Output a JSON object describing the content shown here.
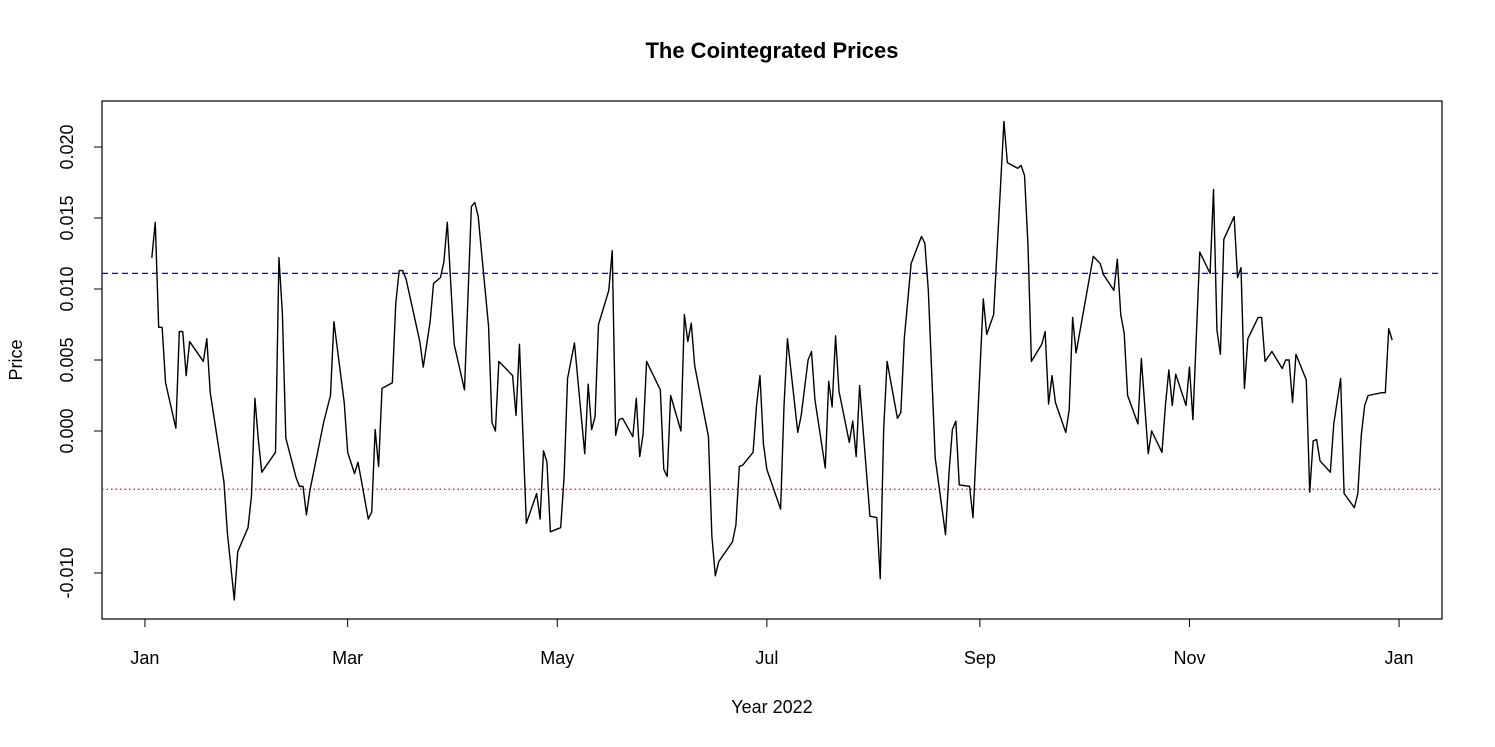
{
  "chart_data": {
    "type": "line",
    "title": "The Cointegrated Prices",
    "xlabel": "Year 2022",
    "ylabel": "Price",
    "xlim": [
      -11.5,
      378.5
    ],
    "ylim": [
      -0.01324,
      0.02324
    ],
    "xticks": [
      {
        "value": 1,
        "label": "Jan"
      },
      {
        "value": 60,
        "label": "Mar"
      },
      {
        "value": 121,
        "label": "May"
      },
      {
        "value": 182,
        "label": "Jul"
      },
      {
        "value": 244,
        "label": "Sep"
      },
      {
        "value": 305,
        "label": "Nov"
      },
      {
        "value": 366,
        "label": "Jan"
      }
    ],
    "yticks": [
      {
        "value": -0.01,
        "label": "-0.010"
      },
      {
        "value": 0,
        "label": "0.000"
      },
      {
        "value": 0.005,
        "label": "0.005"
      },
      {
        "value": 0.01,
        "label": "0.010"
      },
      {
        "value": 0.015,
        "label": "0.015"
      },
      {
        "value": 0.02,
        "label": "0.020"
      }
    ],
    "hlines": [
      {
        "value": 0.0111,
        "color": "blue",
        "style": "dashed"
      },
      {
        "value": -0.0041,
        "color": "red",
        "style": "dotted"
      }
    ],
    "series": [
      {
        "color": "#000000",
        "x": [
          3,
          4,
          5,
          6,
          7,
          10,
          11,
          12,
          13,
          14,
          18,
          19,
          20,
          24,
          25,
          27,
          28,
          31,
          32,
          33,
          34,
          35,
          39,
          40,
          41,
          42,
          45,
          46,
          47,
          48,
          49,
          53,
          55,
          56,
          59,
          60,
          62,
          63,
          64,
          66,
          67,
          68,
          69,
          70,
          73,
          74,
          75,
          76,
          77,
          81,
          82,
          84,
          85,
          87,
          88,
          89,
          91,
          94,
          96,
          97,
          98,
          99,
          101,
          102,
          103,
          104,
          108,
          109,
          110,
          112,
          115,
          116,
          117,
          118,
          119,
          122,
          123,
          124,
          126,
          129,
          130,
          131,
          132,
          133,
          136,
          137,
          138,
          139,
          140,
          143,
          144,
          145,
          146,
          147,
          151,
          152,
          153,
          154,
          157,
          158,
          159,
          160,
          161,
          165,
          166,
          167,
          168,
          172,
          173,
          174,
          175,
          178,
          179,
          180,
          181,
          182,
          186,
          187,
          188,
          191,
          192,
          194,
          195,
          196,
          199,
          200,
          201,
          202,
          203,
          206,
          207,
          208,
          209,
          212,
          214,
          215,
          216,
          217,
          220,
          221,
          222,
          224,
          227,
          228,
          229,
          231,
          234,
          235,
          236,
          237,
          238,
          241,
          242,
          245,
          246,
          248,
          250,
          251,
          252,
          255,
          256,
          257,
          258,
          259,
          262,
          263,
          264,
          265,
          266,
          269,
          270,
          271,
          272,
          277,
          279,
          280,
          283,
          284,
          285,
          286,
          287,
          290,
          291,
          293,
          294,
          297,
          298,
          299,
          300,
          301,
          304,
          305,
          306,
          308,
          311,
          312,
          313,
          314,
          315,
          318,
          319,
          320,
          321,
          322,
          325,
          326,
          327,
          329,
          332,
          333,
          334,
          335,
          336,
          339,
          340,
          341,
          342,
          343,
          346,
          347,
          349,
          350,
          353,
          354,
          355,
          356,
          357,
          361,
          362,
          363,
          364
        ],
        "values": [
          0.0122,
          0.0147,
          0.0073,
          0.0073,
          0.0034,
          0.0002,
          0.007,
          0.007,
          0.0039,
          0.0063,
          0.0049,
          0.0065,
          0.0027,
          -0.0036,
          -0.0072,
          -0.0119,
          -0.0085,
          -0.0068,
          -0.0046,
          0.0023,
          -0.0006,
          -0.0029,
          -0.0015,
          0.0122,
          0.0083,
          -0.0005,
          -0.0033,
          -0.0039,
          -0.0039,
          -0.0059,
          -0.0042,
          0.0006,
          0.0025,
          0.0077,
          0.002,
          -0.0015,
          -0.003,
          -0.0022,
          -0.0035,
          -0.0062,
          -0.0057,
          0.0001,
          -0.0025,
          0.003,
          0.0034,
          0.009,
          0.0113,
          0.0113,
          0.0107,
          0.0063,
          0.0045,
          0.0077,
          0.0104,
          0.0108,
          0.0119,
          0.0147,
          0.0061,
          0.0029,
          0.0158,
          0.0161,
          0.0151,
          0.0125,
          0.0074,
          0.0006,
          0.0,
          0.0049,
          0.0039,
          0.0011,
          0.0061,
          -0.0065,
          -0.0044,
          -0.0062,
          -0.0014,
          -0.0022,
          -0.0071,
          -0.0068,
          -0.0032,
          0.0037,
          0.0062,
          -0.0016,
          0.0033,
          0.0001,
          0.001,
          0.0075,
          0.0099,
          0.0127,
          -0.0003,
          0.0008,
          0.0009,
          -0.0004,
          0.0023,
          -0.0018,
          -0.0002,
          0.0049,
          0.0029,
          -0.0027,
          -0.0032,
          0.0025,
          0.0,
          0.0082,
          0.0063,
          0.0076,
          0.0046,
          -0.0004,
          -0.0074,
          -0.0102,
          -0.0092,
          -0.0078,
          -0.0066,
          -0.0025,
          -0.0024,
          -0.0015,
          0.0018,
          0.0039,
          -0.0009,
          -0.0027,
          -0.0055,
          0.0018,
          0.0065,
          -0.0001,
          0.0011,
          0.005,
          0.0056,
          0.0022,
          -0.0026,
          0.0035,
          0.0017,
          0.0067,
          0.0028,
          -0.0008,
          0.0007,
          -0.0018,
          0.0032,
          -0.006,
          -0.0061,
          -0.0104,
          0.0001,
          0.0049,
          0.0009,
          0.0013,
          0.0065,
          0.0118,
          0.0137,
          0.0132,
          0.0099,
          -0.0019,
          -0.0073,
          -0.003,
          0.0001,
          0.0007,
          -0.0038,
          -0.0039,
          -0.0061,
          0.0093,
          0.0068,
          0.0082,
          0.0172,
          0.0218,
          0.0189,
          0.0185,
          0.0187,
          0.018,
          0.0131,
          0.0049,
          0.0061,
          0.007,
          0.0019,
          0.0039,
          0.002,
          -0.0001,
          0.0015,
          0.008,
          0.0055,
          0.0123,
          0.0118,
          0.011,
          0.0099,
          0.0121,
          0.0082,
          0.0069,
          0.0025,
          0.0005,
          0.0051,
          -0.0016,
          0.0,
          -0.0015,
          0.0018,
          0.0043,
          0.0018,
          0.004,
          0.0018,
          0.0045,
          0.0008,
          0.0126,
          0.0111,
          0.017,
          0.0071,
          0.0054,
          0.0135,
          0.0151,
          0.0108,
          0.0115,
          0.003,
          0.0065,
          0.008,
          0.008,
          0.0049,
          0.0056,
          0.0044,
          0.005,
          0.005,
          0.002,
          0.0054,
          0.0036,
          -0.0043,
          -0.0007,
          -0.0006,
          -0.0021,
          -0.0029,
          0.0005,
          0.0037,
          -0.0044,
          -0.0054,
          -0.0044,
          -0.0003,
          0.0018,
          0.0025,
          0.0027,
          0.0027,
          0.0072,
          0.0064
        ]
      }
    ]
  }
}
